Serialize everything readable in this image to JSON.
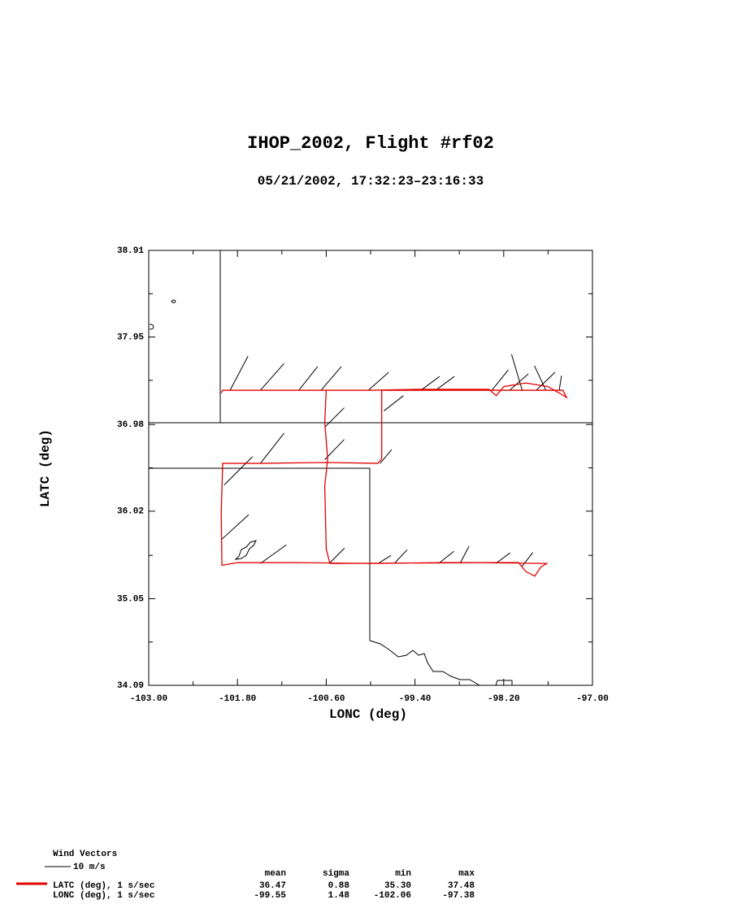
{
  "chart_data": {
    "type": "line",
    "title": "IHOP_2002, Flight #rf02",
    "subtitle": "05/21/2002, 17:32:23–23:16:33",
    "xlabel": "LONC (deg)",
    "ylabel": "LATC (deg)",
    "xlim": [
      -103,
      -97
    ],
    "ylim": [
      34.09,
      38.91
    ],
    "xticks": [
      {
        "value": -103,
        "label": "-103.00"
      },
      {
        "value": -101.8,
        "label": "-101.80"
      },
      {
        "value": -100.6,
        "label": "-100.60"
      },
      {
        "value": -99.4,
        "label": "-99.40"
      },
      {
        "value": -98.2,
        "label": "-98.20"
      },
      {
        "value": -97,
        "label": "-97.00"
      }
    ],
    "yticks": [
      34.09,
      35.05,
      36.02,
      36.98,
      37.95,
      38.91
    ],
    "xminor": [
      -102.4,
      -101.2,
      -100,
      -98.8,
      -97.6
    ],
    "yminor": [
      34.57,
      35.53,
      36.5,
      37.47,
      38.43
    ],
    "series": [
      {
        "name": "LATC (deg), 1 s/sec",
        "color": "#e00000",
        "x": [
          -102.02,
          -102.0,
          -101.5,
          -101.0,
          -100.62,
          -100.0,
          -99.4,
          -98.8,
          -98.4,
          -98.3,
          -98.2,
          -97.9,
          -97.6,
          -97.45,
          -97.35,
          -97.4,
          -97.8,
          -99.85,
          -99.85,
          -99.85,
          -99.9,
          -100.6,
          -101.5,
          -102.0,
          -102.02,
          -102.01,
          -101.8,
          -101.0,
          -100.0,
          -99.0,
          -98.0,
          -97.9,
          -97.78,
          -97.7,
          -97.62,
          -98.5,
          -100.55,
          -100.6,
          -100.62,
          -100.58,
          -100.62,
          -100.6
        ],
        "values": [
          37.33,
          37.36,
          37.36,
          37.36,
          37.36,
          37.36,
          37.37,
          37.37,
          37.37,
          37.3,
          37.4,
          37.44,
          37.4,
          37.33,
          37.28,
          37.36,
          37.36,
          37.36,
          37.0,
          36.6,
          36.55,
          36.56,
          36.55,
          36.55,
          36.0,
          35.42,
          35.45,
          35.45,
          35.44,
          35.45,
          35.45,
          35.35,
          35.3,
          35.4,
          35.44,
          35.45,
          35.44,
          35.6,
          36.3,
          36.6,
          37.0,
          37.36
        ]
      }
    ],
    "wind_vectors": {
      "title": "Wind Vectors",
      "scale": 10,
      "scale_label": "10 m/s",
      "color": "#000000",
      "x": [
        -101.9,
        -101.49,
        -100.97,
        -100.67,
        -100.03,
        -99.32,
        -99.12,
        -98.36,
        -98.12,
        -97.95,
        -97.76,
        -97.63,
        -97.45,
        -100.62,
        -100.62,
        -99.82,
        -99.87,
        -101.49,
        -101.98,
        -102.01,
        -101.49,
        -100.56,
        -99.9,
        -99.68,
        -99.08,
        -98.79,
        -98.31,
        -97.95
      ],
      "y": [
        37.36,
        37.36,
        37.36,
        37.36,
        37.36,
        37.36,
        37.36,
        37.36,
        37.36,
        37.36,
        37.36,
        37.36,
        37.36,
        36.95,
        36.59,
        37.13,
        36.55,
        36.55,
        36.31,
        35.71,
        35.44,
        35.44,
        35.44,
        35.44,
        35.44,
        35.44,
        35.44,
        35.41
      ],
      "u": [
        6.9,
        9.1,
        7.2,
        7.8,
        7.8,
        7.2,
        7.2,
        6.3,
        7.2,
        -4.1,
        7.2,
        -4.4,
        0.9,
        7.5,
        7.5,
        7.5,
        4.4,
        9.1,
        10.9,
        10.3,
        10.0,
        5.9,
        5.0,
        5.0,
        5.9,
        3.4,
        5.6,
        4.1
      ],
      "v": [
        13.1,
        10.3,
        9.1,
        9.1,
        6.9,
        5.3,
        5.3,
        7.8,
        6.3,
        13.8,
        6.9,
        9.4,
        5.6,
        7.5,
        7.8,
        5.9,
        5.3,
        11.6,
        10.9,
        9.4,
        7.2,
        5.9,
        3.1,
        5.3,
        4.7,
        6.6,
        4.1,
        5.3
      ]
    },
    "stats": {
      "columns": [
        "mean",
        "sigma",
        "min",
        "max"
      ],
      "rows": [
        {
          "name": "LATC (deg), 1 s/sec",
          "cells": [
            "36.47",
            "0.88",
            "35.30",
            "37.48"
          ]
        },
        {
          "name": "LONC (deg), 1 s/sec",
          "cells": [
            "-99.55",
            "1.48",
            "-102.06",
            "-97.38"
          ]
        }
      ]
    }
  }
}
